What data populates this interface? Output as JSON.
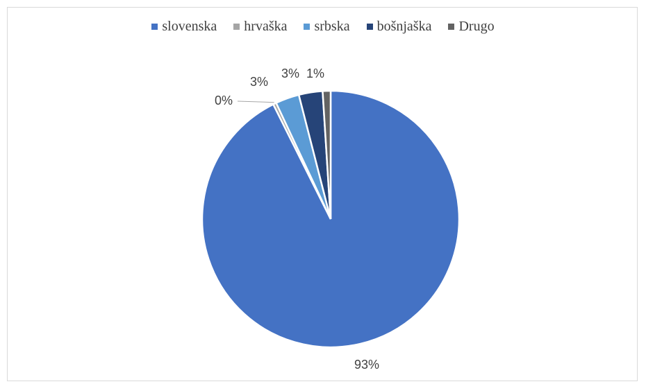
{
  "chart_data": {
    "type": "pie",
    "categories": [
      "slovenska",
      "hrvaška",
      "srbska",
      "bošnjaška",
      "Drugo"
    ],
    "values": [
      93,
      0.4,
      3,
      3,
      1
    ],
    "data_labels": [
      "93%",
      "0%",
      "3%",
      "3%",
      "1%"
    ],
    "colors": [
      "#4472C4",
      "#A5A5A5",
      "#5B9BD5",
      "#264478",
      "#636363"
    ],
    "legend_position": "top",
    "start_direction": "clockwise-from-top"
  }
}
